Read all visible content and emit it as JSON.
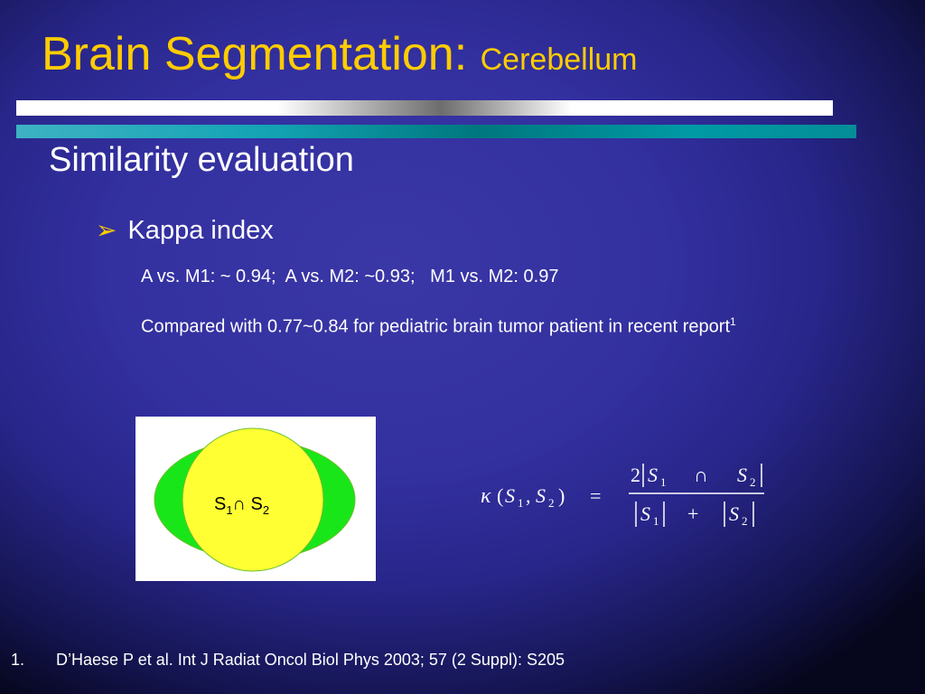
{
  "slide": {
    "title_main": "Brain Segmentation: ",
    "title_sub": "Cerebellum",
    "subtitle": "Similarity evaluation",
    "bullet": "Kappa index",
    "kappa_values": "A vs. M1: ~ 0.94;  A vs. M2: ~0.93;   M1 vs. M2: 0.97",
    "comparison_text": "Compared with 0.77~0.84 for pediatric brain tumor patient in recent report",
    "comparison_ref": "1",
    "footnote_number": "1.",
    "footnote_text": "D’Haese P et al. Int J Radiat Oncol Biol Phys 2003; 57 (2 Suppl): S205"
  },
  "venn": {
    "label_s": "S",
    "label_sub1": "1",
    "label_cap": "∩ ",
    "label_sub2": "2",
    "colors": {
      "outer": "#19e619",
      "inner": "#ffff33",
      "edge": "#6bbf2a"
    }
  },
  "formula": {
    "kappa": "κ",
    "open_paren": "(",
    "s": "S",
    "sub1": "1",
    "comma": ",",
    "sub2": "2",
    "close_paren": ")",
    "equals": "=",
    "two": "2",
    "cap": "∩",
    "plus": "+"
  },
  "colors": {
    "title": "#ffcc00",
    "text": "#ffffff",
    "bullet_arrow": "#ffcc00"
  }
}
